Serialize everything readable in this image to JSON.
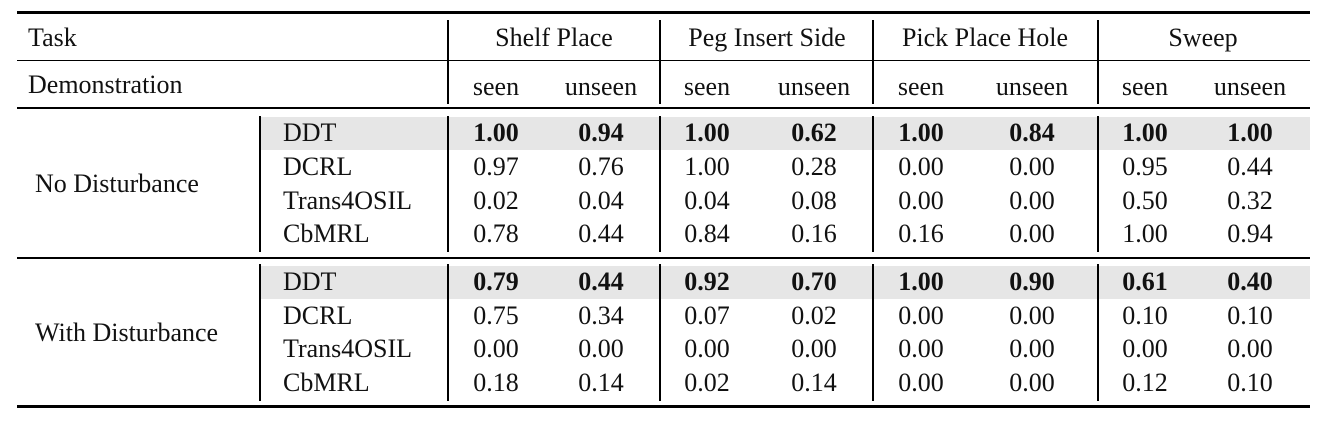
{
  "header": {
    "task_label": "Task",
    "tasks": [
      "Shelf Place",
      "Peg Insert Side",
      "Pick Place Hole",
      "Sweep"
    ],
    "demo_label": "Demonstration",
    "demo_cols": [
      "seen",
      "unseen",
      "seen",
      "unseen",
      "seen",
      "unseen",
      "seen",
      "unseen"
    ]
  },
  "groups": [
    {
      "name": "No Disturbance",
      "rows": [
        {
          "method": "DDT",
          "values": [
            "1.00",
            "0.94",
            "1.00",
            "0.62",
            "1.00",
            "0.84",
            "1.00",
            "1.00"
          ],
          "highlight": true
        },
        {
          "method": "DCRL",
          "values": [
            "0.97",
            "0.76",
            "1.00",
            "0.28",
            "0.00",
            "0.00",
            "0.95",
            "0.44"
          ],
          "highlight": false
        },
        {
          "method": "Trans4OSIL",
          "values": [
            "0.02",
            "0.04",
            "0.04",
            "0.08",
            "0.00",
            "0.00",
            "0.50",
            "0.32"
          ],
          "highlight": false
        },
        {
          "method": "CbMRL",
          "values": [
            "0.78",
            "0.44",
            "0.84",
            "0.16",
            "0.16",
            "0.00",
            "1.00",
            "0.94"
          ],
          "highlight": false
        }
      ]
    },
    {
      "name": "With Disturbance",
      "rows": [
        {
          "method": "DDT",
          "values": [
            "0.79",
            "0.44",
            "0.92",
            "0.70",
            "1.00",
            "0.90",
            "0.61",
            "0.40"
          ],
          "highlight": true
        },
        {
          "method": "DCRL",
          "values": [
            "0.75",
            "0.34",
            "0.07",
            "0.02",
            "0.00",
            "0.00",
            "0.10",
            "0.10"
          ],
          "highlight": false
        },
        {
          "method": "Trans4OSIL",
          "values": [
            "0.00",
            "0.00",
            "0.00",
            "0.00",
            "0.00",
            "0.00",
            "0.00",
            "0.00"
          ],
          "highlight": false
        },
        {
          "method": "CbMRL",
          "values": [
            "0.18",
            "0.14",
            "0.02",
            "0.14",
            "0.00",
            "0.00",
            "0.12",
            "0.10"
          ],
          "highlight": false
        }
      ]
    }
  ]
}
